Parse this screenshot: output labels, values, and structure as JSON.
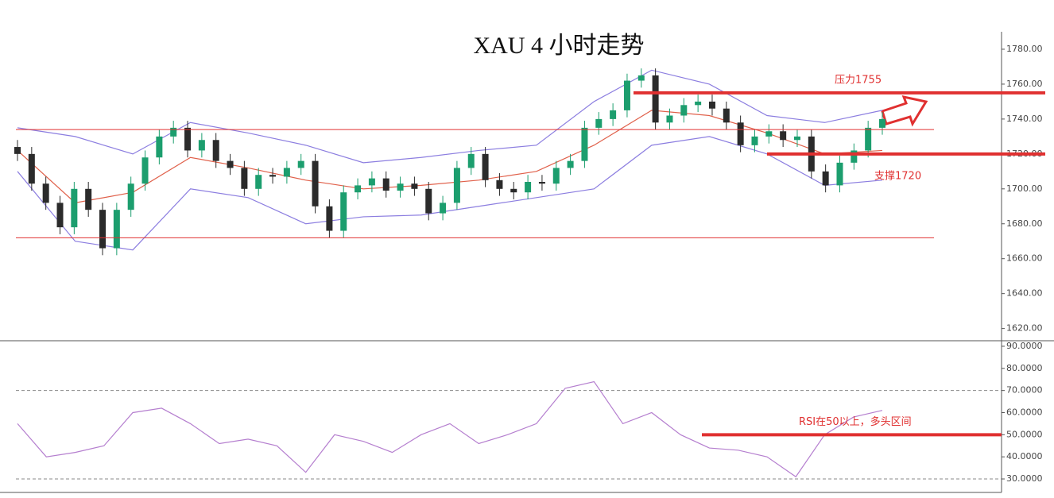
{
  "chart_data": [
    {
      "type": "candlestick",
      "title": "XAU 4 小时走势",
      "open": [
        1724,
        1720,
        1703,
        1692,
        1678,
        1700,
        1688,
        1666,
        1688,
        1703,
        1718,
        1730,
        1735,
        1722,
        1728,
        1716,
        1712,
        1700,
        1708,
        1707,
        1712,
        1716,
        1690,
        1676,
        1698,
        1702,
        1706,
        1699,
        1703,
        1700,
        1686,
        1692,
        1712,
        1720,
        1705,
        1700,
        1698,
        1704,
        1703,
        1712,
        1716,
        1735,
        1740,
        1745,
        1762,
        1765,
        1738,
        1742,
        1748,
        1750,
        1746,
        1738,
        1725,
        1730,
        1733,
        1728,
        1730,
        1710,
        1702,
        1715,
        1722,
        1735
      ],
      "high": [
        1728,
        1724,
        1707,
        1696,
        1704,
        1704,
        1692,
        1692,
        1707,
        1722,
        1734,
        1739,
        1739,
        1732,
        1732,
        1720,
        1716,
        1712,
        1712,
        1716,
        1720,
        1720,
        1694,
        1702,
        1706,
        1710,
        1710,
        1707,
        1707,
        1704,
        1696,
        1716,
        1724,
        1724,
        1709,
        1704,
        1708,
        1708,
        1716,
        1720,
        1739,
        1744,
        1749,
        1766,
        1769,
        1769,
        1746,
        1752,
        1754,
        1754,
        1750,
        1742,
        1734,
        1737,
        1737,
        1734,
        1734,
        1714,
        1719,
        1726,
        1739,
        1744
      ],
      "low": [
        1716,
        1699,
        1688,
        1674,
        1674,
        1684,
        1662,
        1662,
        1684,
        1699,
        1714,
        1726,
        1718,
        1718,
        1712,
        1708,
        1696,
        1696,
        1703,
        1703,
        1708,
        1686,
        1672,
        1672,
        1694,
        1698,
        1695,
        1695,
        1696,
        1682,
        1682,
        1688,
        1708,
        1701,
        1696,
        1694,
        1694,
        1699,
        1699,
        1708,
        1712,
        1731,
        1736,
        1741,
        1758,
        1734,
        1734,
        1738,
        1744,
        1742,
        1734,
        1721,
        1721,
        1726,
        1724,
        1724,
        1706,
        1698,
        1698,
        1711,
        1718,
        1731
      ],
      "close": [
        1720,
        1703,
        1692,
        1678,
        1700,
        1688,
        1666,
        1688,
        1703,
        1718,
        1730,
        1735,
        1722,
        1728,
        1716,
        1712,
        1700,
        1708,
        1707,
        1712,
        1716,
        1690,
        1676,
        1698,
        1702,
        1706,
        1699,
        1703,
        1700,
        1686,
        1692,
        1712,
        1720,
        1705,
        1700,
        1698,
        1704,
        1703,
        1712,
        1716,
        1735,
        1740,
        1745,
        1762,
        1765,
        1738,
        1742,
        1748,
        1750,
        1746,
        1738,
        1725,
        1730,
        1733,
        1728,
        1730,
        1710,
        1702,
        1715,
        1722,
        1735,
        1740
      ],
      "up_color": "#1c9e6e",
      "down_color": "#2b2b2b",
      "series": [
        {
          "color": "#e0604a",
          "values": [
            1722,
            1692,
            1698,
            1718,
            1712,
            1705,
            1700,
            1702,
            1705,
            1710,
            1725,
            1745,
            1742,
            1732,
            1720,
            1722
          ]
        },
        {
          "color": "#8c7ee0",
          "values": [
            1735,
            1730,
            1720,
            1738,
            1732,
            1725,
            1715,
            1718,
            1722,
            1725,
            1750,
            1768,
            1760,
            1742,
            1738,
            1745
          ]
        },
        {
          "color": "#8c7ee0",
          "values": [
            1710,
            1670,
            1665,
            1700,
            1695,
            1680,
            1684,
            1685,
            1690,
            1695,
            1700,
            1725,
            1730,
            1720,
            1702,
            1705
          ]
        }
      ],
      "levels": [
        {
          "value": 1734,
          "color": "#e03030",
          "width": 1
        },
        {
          "value": 1672,
          "color": "#e03030",
          "width": 1
        },
        {
          "value": 1755,
          "color": "#e03030",
          "width": 4,
          "text": "压力1755"
        },
        {
          "value": 1720,
          "color": "#e03030",
          "width": 4,
          "text": "支撑1720"
        }
      ],
      "ylim": [
        1613,
        1790
      ],
      "yticks": [
        {
          "value": 1620,
          "label": "1620.00"
        },
        {
          "value": 1640,
          "label": "1640.00"
        },
        {
          "value": 1660,
          "label": "1660.00"
        },
        {
          "value": 1680,
          "label": "1680.00"
        },
        {
          "value": 1700,
          "label": "1700.00"
        },
        {
          "value": 1720,
          "label": "1720.00"
        },
        {
          "value": 1740,
          "label": "1740.00"
        },
        {
          "value": 1760,
          "label": "1760.00"
        },
        {
          "value": 1780,
          "label": "1780.00"
        }
      ]
    },
    {
      "type": "line",
      "color": "#b57fcf",
      "values": [
        55,
        40,
        42,
        45,
        60,
        62,
        55,
        46,
        48,
        45,
        33,
        50,
        47,
        42,
        50,
        55,
        46,
        50,
        55,
        71,
        74,
        55,
        60,
        50,
        44,
        43,
        40,
        31,
        50,
        58,
        61
      ],
      "ref_lines": [
        70,
        30
      ],
      "levels": [
        {
          "value": 50,
          "color": "#e03030",
          "width": 4,
          "text": "RSI在50以上，多头区间"
        }
      ],
      "ylim": [
        23.9,
        92.5
      ],
      "yticks": [
        {
          "value": 30,
          "label": "30.0000"
        },
        {
          "value": 40,
          "label": "40.0000"
        },
        {
          "value": 50,
          "label": "50.0000"
        },
        {
          "value": 60,
          "label": "60.0000"
        },
        {
          "value": 70,
          "label": "70.0000"
        },
        {
          "value": 80,
          "label": "80.0000"
        },
        {
          "value": 90,
          "label": "90.0000"
        }
      ]
    }
  ]
}
